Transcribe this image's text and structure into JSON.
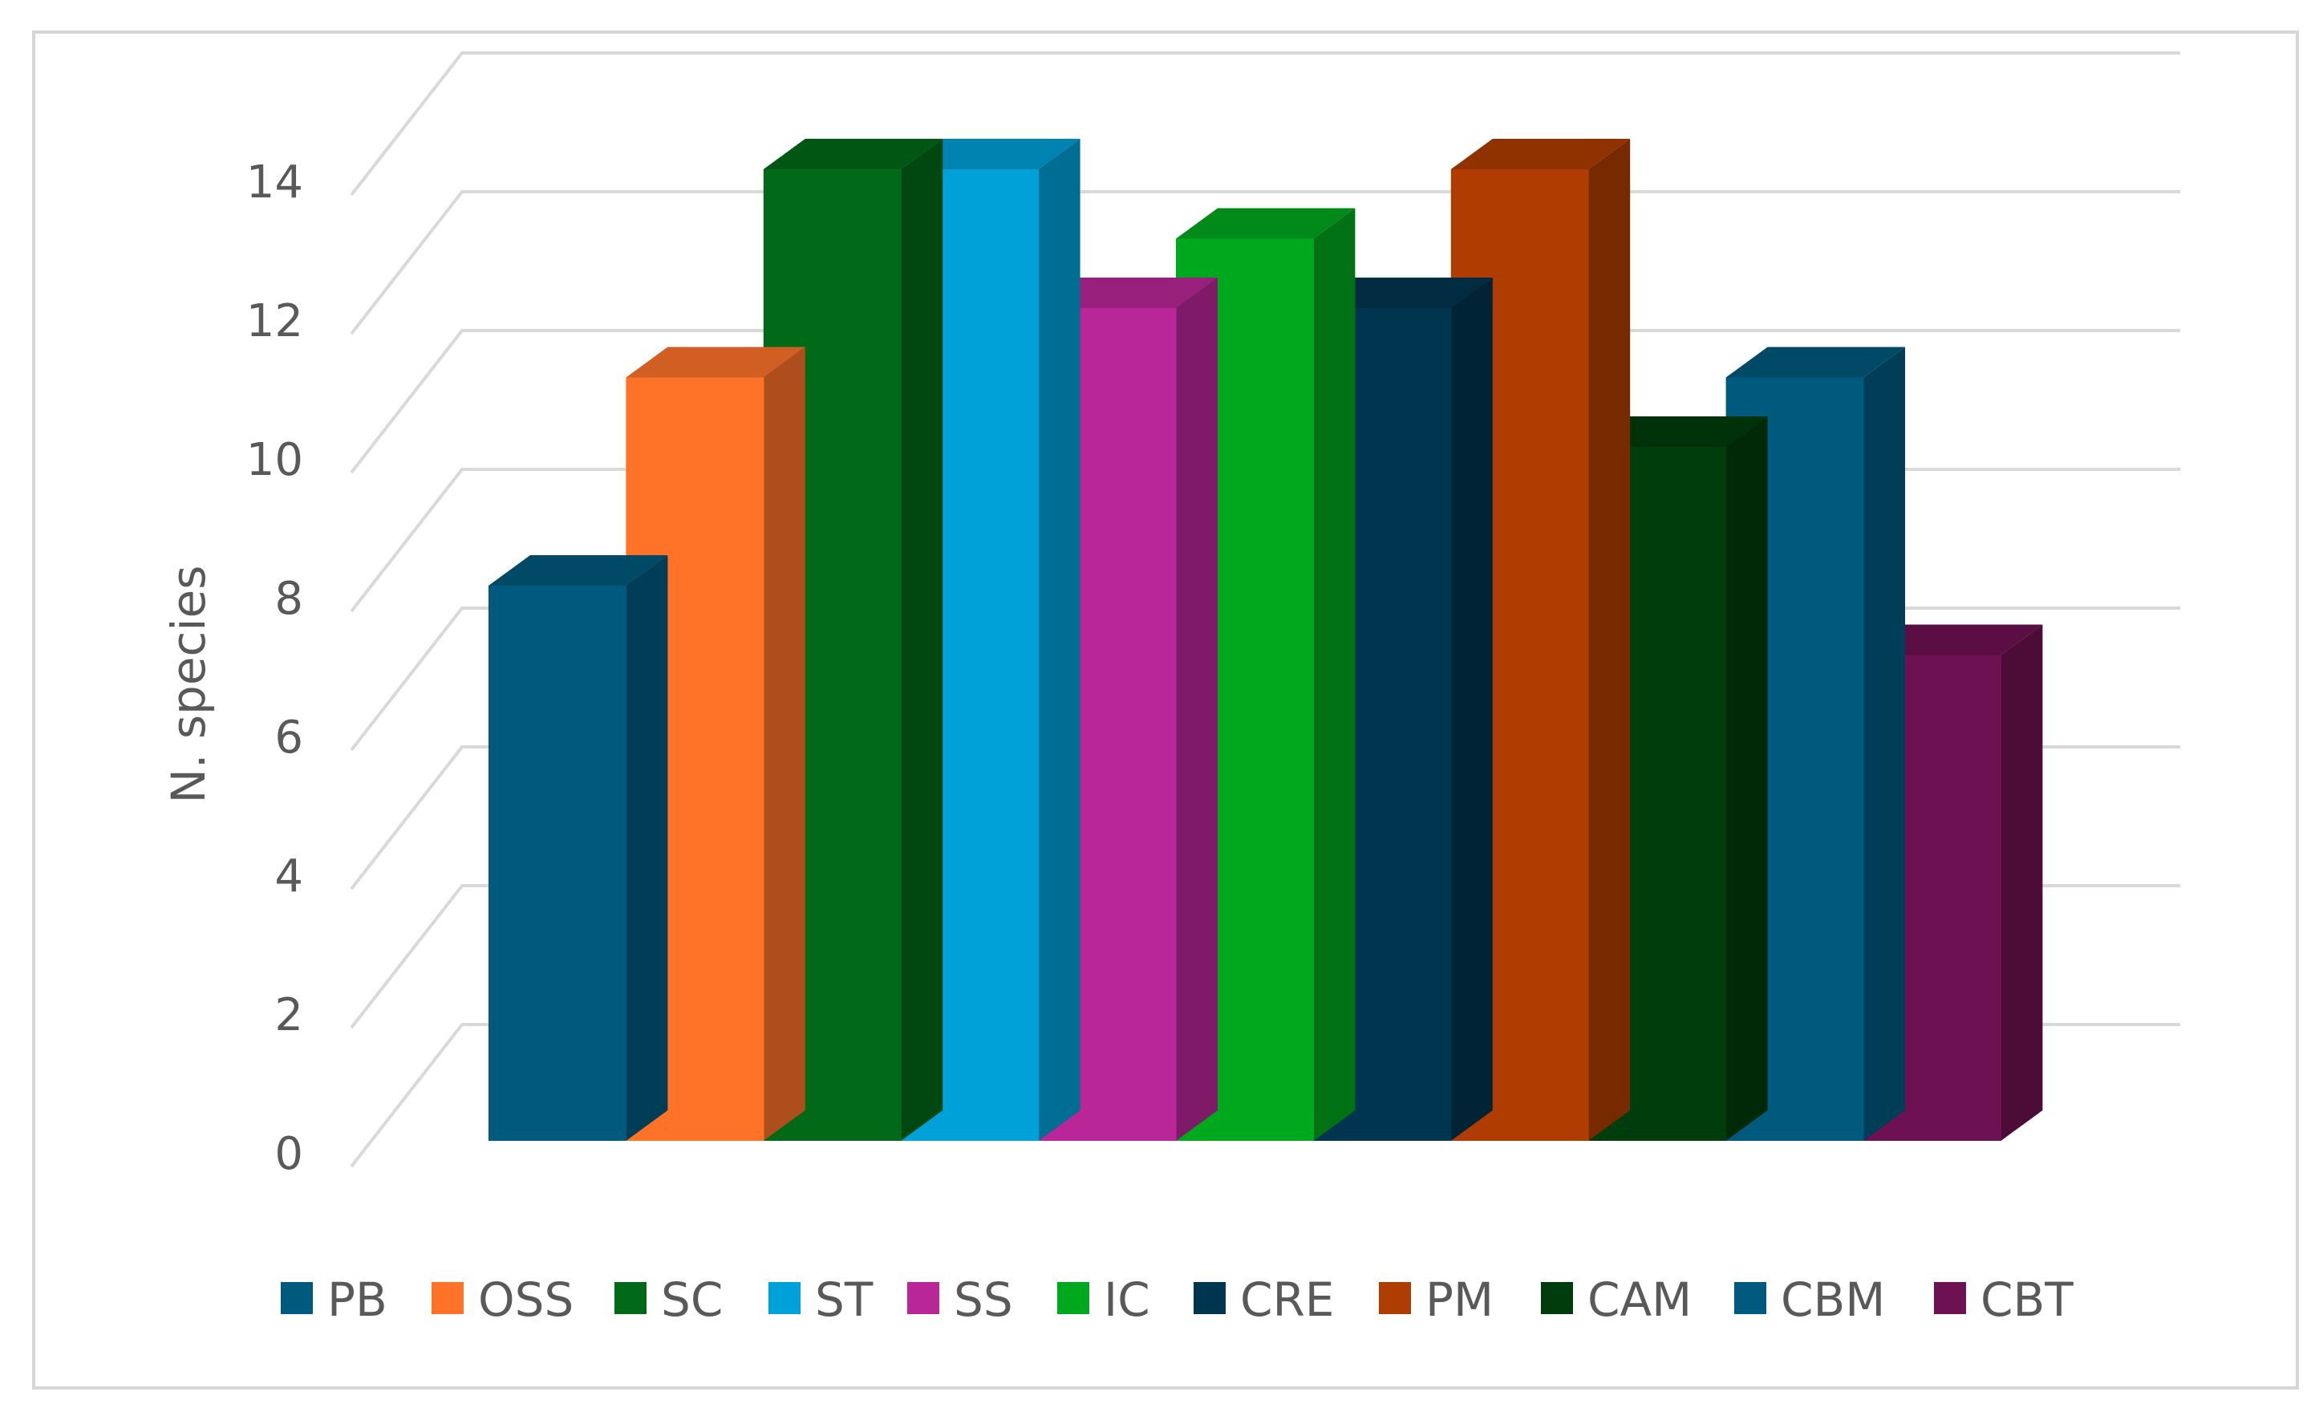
{
  "chart_data": {
    "type": "bar",
    "style": "3d-clustered-column",
    "title": "",
    "xlabel": "",
    "ylabel": "N. species",
    "ylim": [
      0,
      14
    ],
    "yticks": [
      0,
      2,
      4,
      6,
      8,
      10,
      12,
      14
    ],
    "grid": true,
    "legend_position": "bottom",
    "series": [
      {
        "name": "PB",
        "value": 8,
        "color": "#005a7e"
      },
      {
        "name": "OSS",
        "value": 11,
        "color": "#ff7329"
      },
      {
        "name": "SC",
        "value": 14,
        "color": "#006a18"
      },
      {
        "name": "ST",
        "value": 14,
        "color": "#00a0d8"
      },
      {
        "name": "SS",
        "value": 12,
        "color": "#b92697"
      },
      {
        "name": "IC",
        "value": 13,
        "color": "#00a81e"
      },
      {
        "name": "CRE",
        "value": 12,
        "color": "#00354f"
      },
      {
        "name": "PM",
        "value": 14,
        "color": "#af3c00"
      },
      {
        "name": "CAM",
        "value": 10,
        "color": "#003d0c"
      },
      {
        "name": "CBM",
        "value": 11,
        "color": "#005a7e"
      },
      {
        "name": "CBT",
        "value": 7,
        "color": "#6e1152"
      }
    ]
  }
}
